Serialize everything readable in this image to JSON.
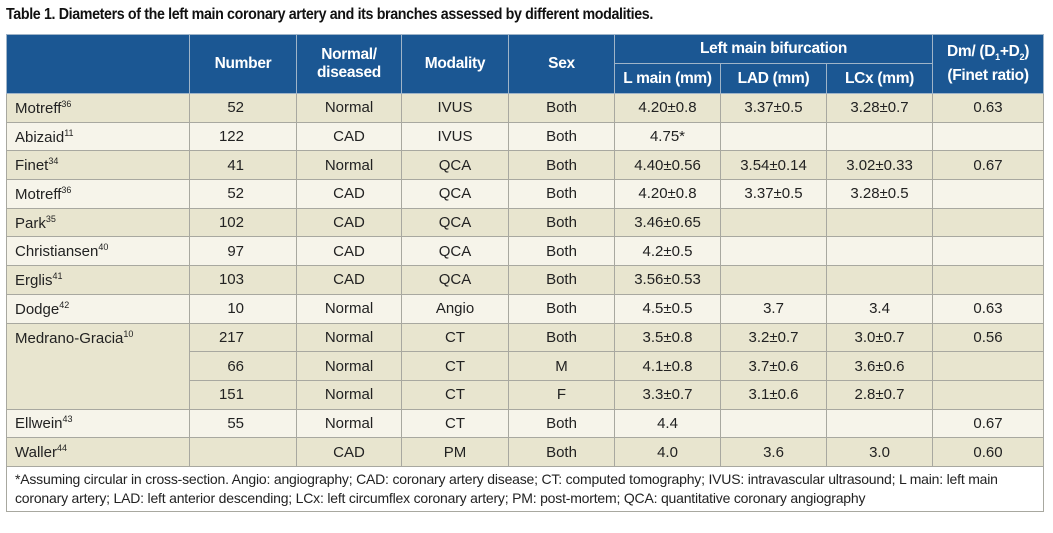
{
  "title": "Table 1. Diameters of the left main coronary artery and its branches assessed by different modalities.",
  "header": {
    "number": "Number",
    "normal_diseased": "Normal/ diseased",
    "modality": "Modality",
    "sex": "Sex",
    "bifurcation": "Left main bifurcation",
    "lmain": "L main (mm)",
    "lad": "LAD (mm)",
    "lcx": "LCx (mm)",
    "finet_a": "Dm/ (D",
    "finet_s1": "1",
    "finet_b": "+D",
    "finet_s2": "2",
    "finet_c": ")",
    "finet_d": "(Finet ratio)"
  },
  "rows": [
    {
      "study": "Motreff",
      "ref": "36",
      "number": "52",
      "status": "Normal",
      "modality": "IVUS",
      "sex": "Both",
      "lmain": "4.20±0.8",
      "lad": "3.37±0.5",
      "lcx": "3.28±0.7",
      "finet": "0.63"
    },
    {
      "study": "Abizaid",
      "ref": "11",
      "number": "122",
      "status": "CAD",
      "modality": "IVUS",
      "sex": "Both",
      "lmain": "4.75*",
      "lad": "",
      "lcx": "",
      "finet": ""
    },
    {
      "study": "Finet",
      "ref": "34",
      "number": "41",
      "status": "Normal",
      "modality": "QCA",
      "sex": "Both",
      "lmain": "4.40±0.56",
      "lad": "3.54±0.14",
      "lcx": "3.02±0.33",
      "finet": "0.67"
    },
    {
      "study": "Motreff",
      "ref": "36",
      "number": "52",
      "status": "CAD",
      "modality": "QCA",
      "sex": "Both",
      "lmain": "4.20±0.8",
      "lad": "3.37±0.5",
      "lcx": "3.28±0.5",
      "finet": ""
    },
    {
      "study": "Park",
      "ref": "35",
      "number": "102",
      "status": "CAD",
      "modality": "QCA",
      "sex": "Both",
      "lmain": "3.46±0.65",
      "lad": "",
      "lcx": "",
      "finet": ""
    },
    {
      "study": "Christiansen",
      "ref": "40",
      "number": "97",
      "status": "CAD",
      "modality": "QCA",
      "sex": "Both",
      "lmain": "4.2±0.5",
      "lad": "",
      "lcx": "",
      "finet": ""
    },
    {
      "study": "Erglis",
      "ref": "41",
      "number": "103",
      "status": "CAD",
      "modality": "QCA",
      "sex": "Both",
      "lmain": "3.56±0.53",
      "lad": "",
      "lcx": "",
      "finet": ""
    },
    {
      "study": "Dodge",
      "ref": "42",
      "number": "10",
      "status": "Normal",
      "modality": "Angio",
      "sex": "Both",
      "lmain": "4.5±0.5",
      "lad": "3.7",
      "lcx": "3.4",
      "finet": "0.63"
    },
    {
      "study": "Medrano-Gracia",
      "ref": "10",
      "number": "217",
      "status": "Normal",
      "modality": "CT",
      "sex": "Both",
      "lmain": "3.5±0.8",
      "lad": "3.2±0.7",
      "lcx": "3.0±0.7",
      "finet": "0.56"
    },
    {
      "study": "",
      "ref": "",
      "number": "66",
      "status": "Normal",
      "modality": "CT",
      "sex": "M",
      "lmain": "4.1±0.8",
      "lad": "3.7±0.6",
      "lcx": "3.6±0.6",
      "finet": ""
    },
    {
      "study": "",
      "ref": "",
      "number": "151",
      "status": "Normal",
      "modality": "CT",
      "sex": "F",
      "lmain": "3.3±0.7",
      "lad": "3.1±0.6",
      "lcx": "2.8±0.7",
      "finet": ""
    },
    {
      "study": "Ellwein",
      "ref": "43",
      "number": "55",
      "status": "Normal",
      "modality": "CT",
      "sex": "Both",
      "lmain": "4.4",
      "lad": "",
      "lcx": "",
      "finet": "0.67"
    },
    {
      "study": "Waller",
      "ref": "44",
      "number": "",
      "status": "CAD",
      "modality": "PM",
      "sex": "Both",
      "lmain": "4.0",
      "lad": "3.6",
      "lcx": "3.0",
      "finet": "0.60"
    }
  ],
  "footnote": "*Assuming circular in cross-section. Angio: angiography; CAD: coronary artery disease; CT: computed tomography; IVUS: intravascular ultrasound; L main: left main coronary artery; LAD: left anterior descending; LCx: left circumflex coronary artery; PM: post-mortem; QCA: quantitative coronary angiography",
  "colors": {
    "header": "#1b5793",
    "row_dark": "#e8e5cf",
    "row_light": "#f6f4ea"
  }
}
